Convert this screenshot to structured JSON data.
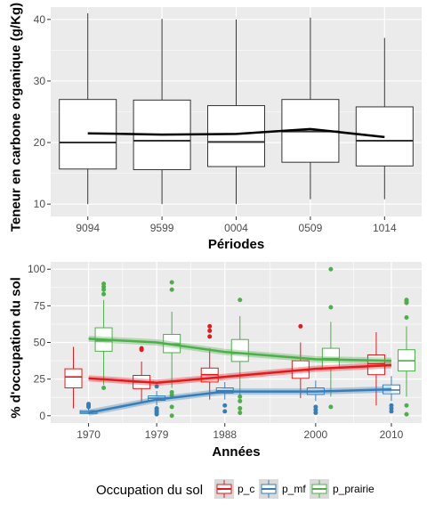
{
  "chart_data": [
    {
      "type": "boxplot",
      "xlabel": "Périodes",
      "ylabel": "Teneur en carbone organique (g/Kg)",
      "ylim": [
        8,
        42
      ],
      "yticks": [
        10,
        20,
        30,
        40
      ],
      "categories": [
        "9094",
        "9599",
        "0004",
        "0509",
        "1014"
      ],
      "boxes": [
        {
          "label": "9094",
          "whisker_low": 10,
          "q1": 15.7,
          "median": 20.0,
          "q3": 27.0,
          "whisker_high": 41.0
        },
        {
          "label": "9599",
          "whisker_low": 10,
          "q1": 15.6,
          "median": 20.3,
          "q3": 26.9,
          "whisker_high": 40.1
        },
        {
          "label": "0004",
          "whisker_low": 10,
          "q1": 16.1,
          "median": 20.1,
          "q3": 26.0,
          "whisker_high": 40.0
        },
        {
          "label": "0509",
          "whisker_low": 10.8,
          "q1": 16.8,
          "median": 21.8,
          "q3": 27.0,
          "whisker_high": 40.3
        },
        {
          "label": "1014",
          "whisker_low": 10.8,
          "q1": 16.2,
          "median": 20.3,
          "q3": 25.8,
          "whisker_high": 37.0
        }
      ],
      "trend_line": [
        21.5,
        21.3,
        21.4,
        22.2,
        20.9
      ],
      "colors": {
        "panel": "#ebebeb",
        "box_fill": "#ffffff",
        "box_line": "#333333",
        "trend": "#000000"
      }
    },
    {
      "type": "boxplot",
      "xlabel": "Années",
      "ylabel": "% d'occupation du sol",
      "ylim": [
        -5,
        105
      ],
      "yticks": [
        0,
        25,
        50,
        75,
        100
      ],
      "xlim": [
        1965,
        2014
      ],
      "xticks": [
        1970,
        1979,
        1988,
        2000,
        2010
      ],
      "legend": {
        "title": "Occupation du sol",
        "position": "bottom"
      },
      "series": [
        {
          "name": "p_c",
          "color": "#e31a1c",
          "boxes": [
            {
              "x": 1968,
              "whisker_low": 5,
              "q1": 19,
              "median": 26.5,
              "q3": 32,
              "whisker_high": 47,
              "outliers": []
            },
            {
              "x": 1977,
              "whisker_low": 9,
              "q1": 18.5,
              "median": 23,
              "q3": 27.5,
              "whisker_high": 37,
              "outliers": [
                45,
                46
              ]
            },
            {
              "x": 1986,
              "whisker_low": 11,
              "q1": 23,
              "median": 28,
              "q3": 32.5,
              "whisker_high": 46,
              "outliers": [
                54,
                58,
                61
              ]
            },
            {
              "x": 1998,
              "whisker_low": 12,
              "q1": 25.5,
              "median": 31,
              "q3": 37.5,
              "whisker_high": 50,
              "outliers": [
                61
              ]
            },
            {
              "x": 2008,
              "whisker_low": 7,
              "q1": 28,
              "median": 35.5,
              "q3": 41.5,
              "whisker_high": 57,
              "outliers": []
            }
          ],
          "trend": [
            {
              "x": 1970,
              "y": 25.5
            },
            {
              "x": 1979,
              "y": 22.5
            },
            {
              "x": 1988,
              "y": 26.5
            },
            {
              "x": 2000,
              "y": 32
            },
            {
              "x": 2010,
              "y": 34.5
            }
          ]
        },
        {
          "name": "p_mf",
          "color": "#377eb8",
          "boxes": [
            {
              "x": 1970,
              "whisker_low": 1,
              "q1": 1.5,
              "median": 2.5,
              "q3": 3.5,
              "whisker_high": 5,
              "outliers": [
                6,
                7,
                8
              ]
            },
            {
              "x": 1979,
              "whisker_low": 7,
              "q1": 10.5,
              "median": 12,
              "q3": 13.5,
              "whisker_high": 17,
              "outliers": [
                1,
                2,
                3,
                4,
                5,
                20
              ]
            },
            {
              "x": 1988,
              "whisker_low": 11,
              "q1": 15.5,
              "median": 17,
              "q3": 19,
              "whisker_high": 23,
              "outliers": [
                3,
                7
              ]
            },
            {
              "x": 2000,
              "whisker_low": 10,
              "q1": 14.5,
              "median": 16.5,
              "q3": 19,
              "whisker_high": 24,
              "outliers": [
                2,
                4,
                6
              ]
            },
            {
              "x": 2010,
              "whisker_low": 10,
              "q1": 15,
              "median": 17.5,
              "q3": 21,
              "whisker_high": 27,
              "outliers": [
                3,
                5,
                7
              ]
            }
          ],
          "trend": [
            {
              "x": 1970,
              "y": 2
            },
            {
              "x": 1979,
              "y": 11
            },
            {
              "x": 1988,
              "y": 16.5
            },
            {
              "x": 2000,
              "y": 16.5
            },
            {
              "x": 2010,
              "y": 18
            }
          ]
        },
        {
          "name": "p_prairie",
          "color": "#4daf4a",
          "boxes": [
            {
              "x": 1972,
              "whisker_low": 21,
              "q1": 44,
              "median": 51,
              "q3": 60,
              "whisker_high": 79,
              "outliers": [
                19,
                83,
                86,
                88,
                90
              ]
            },
            {
              "x": 1981,
              "whisker_low": 19,
              "q1": 43,
              "median": 49,
              "q3": 55.5,
              "whisker_high": 71,
              "outliers": [
                0,
                6,
                14,
                16,
                86,
                91
              ]
            },
            {
              "x": 1990,
              "whisker_low": 14,
              "q1": 37,
              "median": 42.5,
              "q3": 52,
              "whisker_high": 68,
              "outliers": [
                2,
                5,
                10,
                13,
                79
              ]
            },
            {
              "x": 2002,
              "whisker_low": 13,
              "q1": 32.5,
              "median": 39,
              "q3": 46,
              "whisker_high": 64,
              "outliers": [
                6,
                74,
                100
              ]
            },
            {
              "x": 2012,
              "whisker_low": 13,
              "q1": 30.5,
              "median": 37.5,
              "q3": 45,
              "whisker_high": 61,
              "outliers": [
                1,
                7,
                67,
                77,
                78,
                79
              ]
            }
          ],
          "trend": [
            {
              "x": 1970,
              "y": 52.5
            },
            {
              "x": 1979,
              "y": 50
            },
            {
              "x": 1988,
              "y": 43.5
            },
            {
              "x": 2000,
              "y": 38.5
            },
            {
              "x": 2010,
              "y": 37.5
            }
          ]
        }
      ],
      "colors": {
        "panel": "#ebebeb",
        "box_fill": "#ffffff"
      }
    }
  ]
}
